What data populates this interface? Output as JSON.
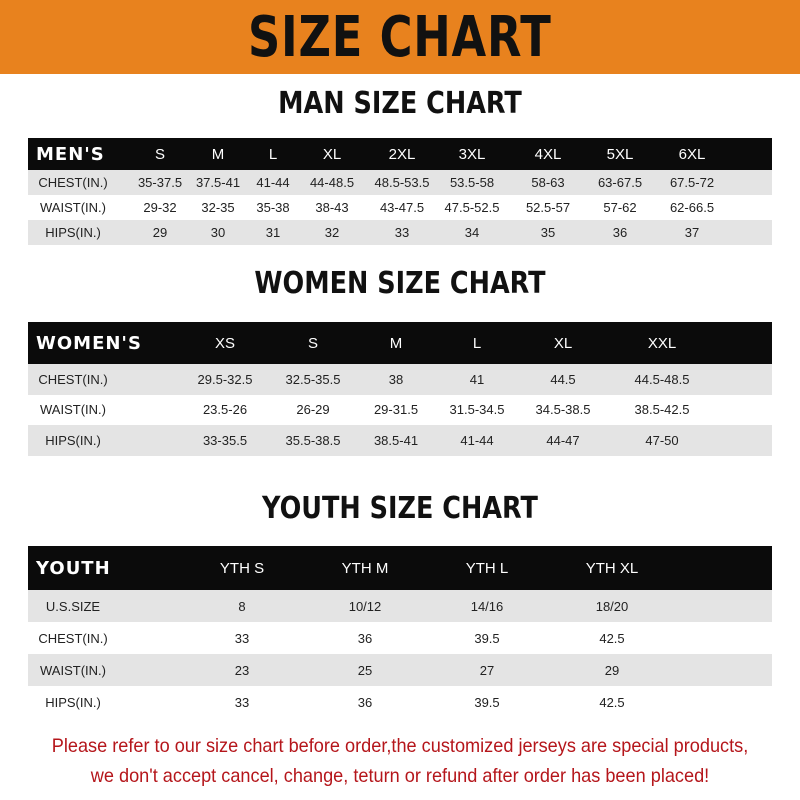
{
  "banner_title": "SIZE CHART",
  "colors": {
    "banner": "#e8821e",
    "header_row": "#0b0b0b",
    "stripe": "#e4e4e4",
    "notice": "#b5161b"
  },
  "men": {
    "title": "MAN SIZE CHART",
    "header": [
      "MEN'S",
      "S",
      "M",
      "L",
      "XL",
      "2XL",
      "3XL",
      "4XL",
      "5XL",
      "6XL"
    ],
    "rows": [
      [
        "CHEST(IN.)",
        "35-37.5",
        "37.5-41",
        "41-44",
        "44-48.5",
        "48.5-53.5",
        "53.5-58",
        "58-63",
        "63-67.5",
        "67.5-72"
      ],
      [
        "WAIST(IN.)",
        "29-32",
        "32-35",
        "35-38",
        "38-43",
        "43-47.5",
        "47.5-52.5",
        "52.5-57",
        "57-62",
        "62-66.5"
      ],
      [
        "HIPS(IN.)",
        "29",
        "30",
        "31",
        "32",
        "33",
        "34",
        "35",
        "36",
        "37"
      ]
    ]
  },
  "women": {
    "title": "WOMEN SIZE CHART",
    "header": [
      "WOMEN'S",
      "XS",
      "S",
      "M",
      "L",
      "XL",
      "XXL"
    ],
    "rows": [
      [
        "CHEST(IN.)",
        "29.5-32.5",
        "32.5-35.5",
        "38",
        "41",
        "44.5",
        "44.5-48.5"
      ],
      [
        "WAIST(IN.)",
        "23.5-26",
        "26-29",
        "29-31.5",
        "31.5-34.5",
        "34.5-38.5",
        "38.5-42.5"
      ],
      [
        "HIPS(IN.)",
        "33-35.5",
        "35.5-38.5",
        "38.5-41",
        "41-44",
        "44-47",
        "47-50"
      ]
    ]
  },
  "youth": {
    "title": "YOUTH SIZE CHART",
    "header": [
      "YOUTH",
      "YTH S",
      "YTH M",
      "YTH L",
      "YTH XL"
    ],
    "rows": [
      [
        "U.S.SIZE",
        "8",
        "10/12",
        "14/16",
        "18/20"
      ],
      [
        "CHEST(IN.)",
        "33",
        "36",
        "39.5",
        "42.5"
      ],
      [
        "WAIST(IN.)",
        "23",
        "25",
        "27",
        "29"
      ],
      [
        "HIPS(IN.)",
        "33",
        "36",
        "39.5",
        "42.5"
      ]
    ]
  },
  "notice": [
    "Please refer to our size chart before order,the customized jerseys are special products,",
    "we don't accept cancel, change, teturn or refund after order has been placed!"
  ]
}
